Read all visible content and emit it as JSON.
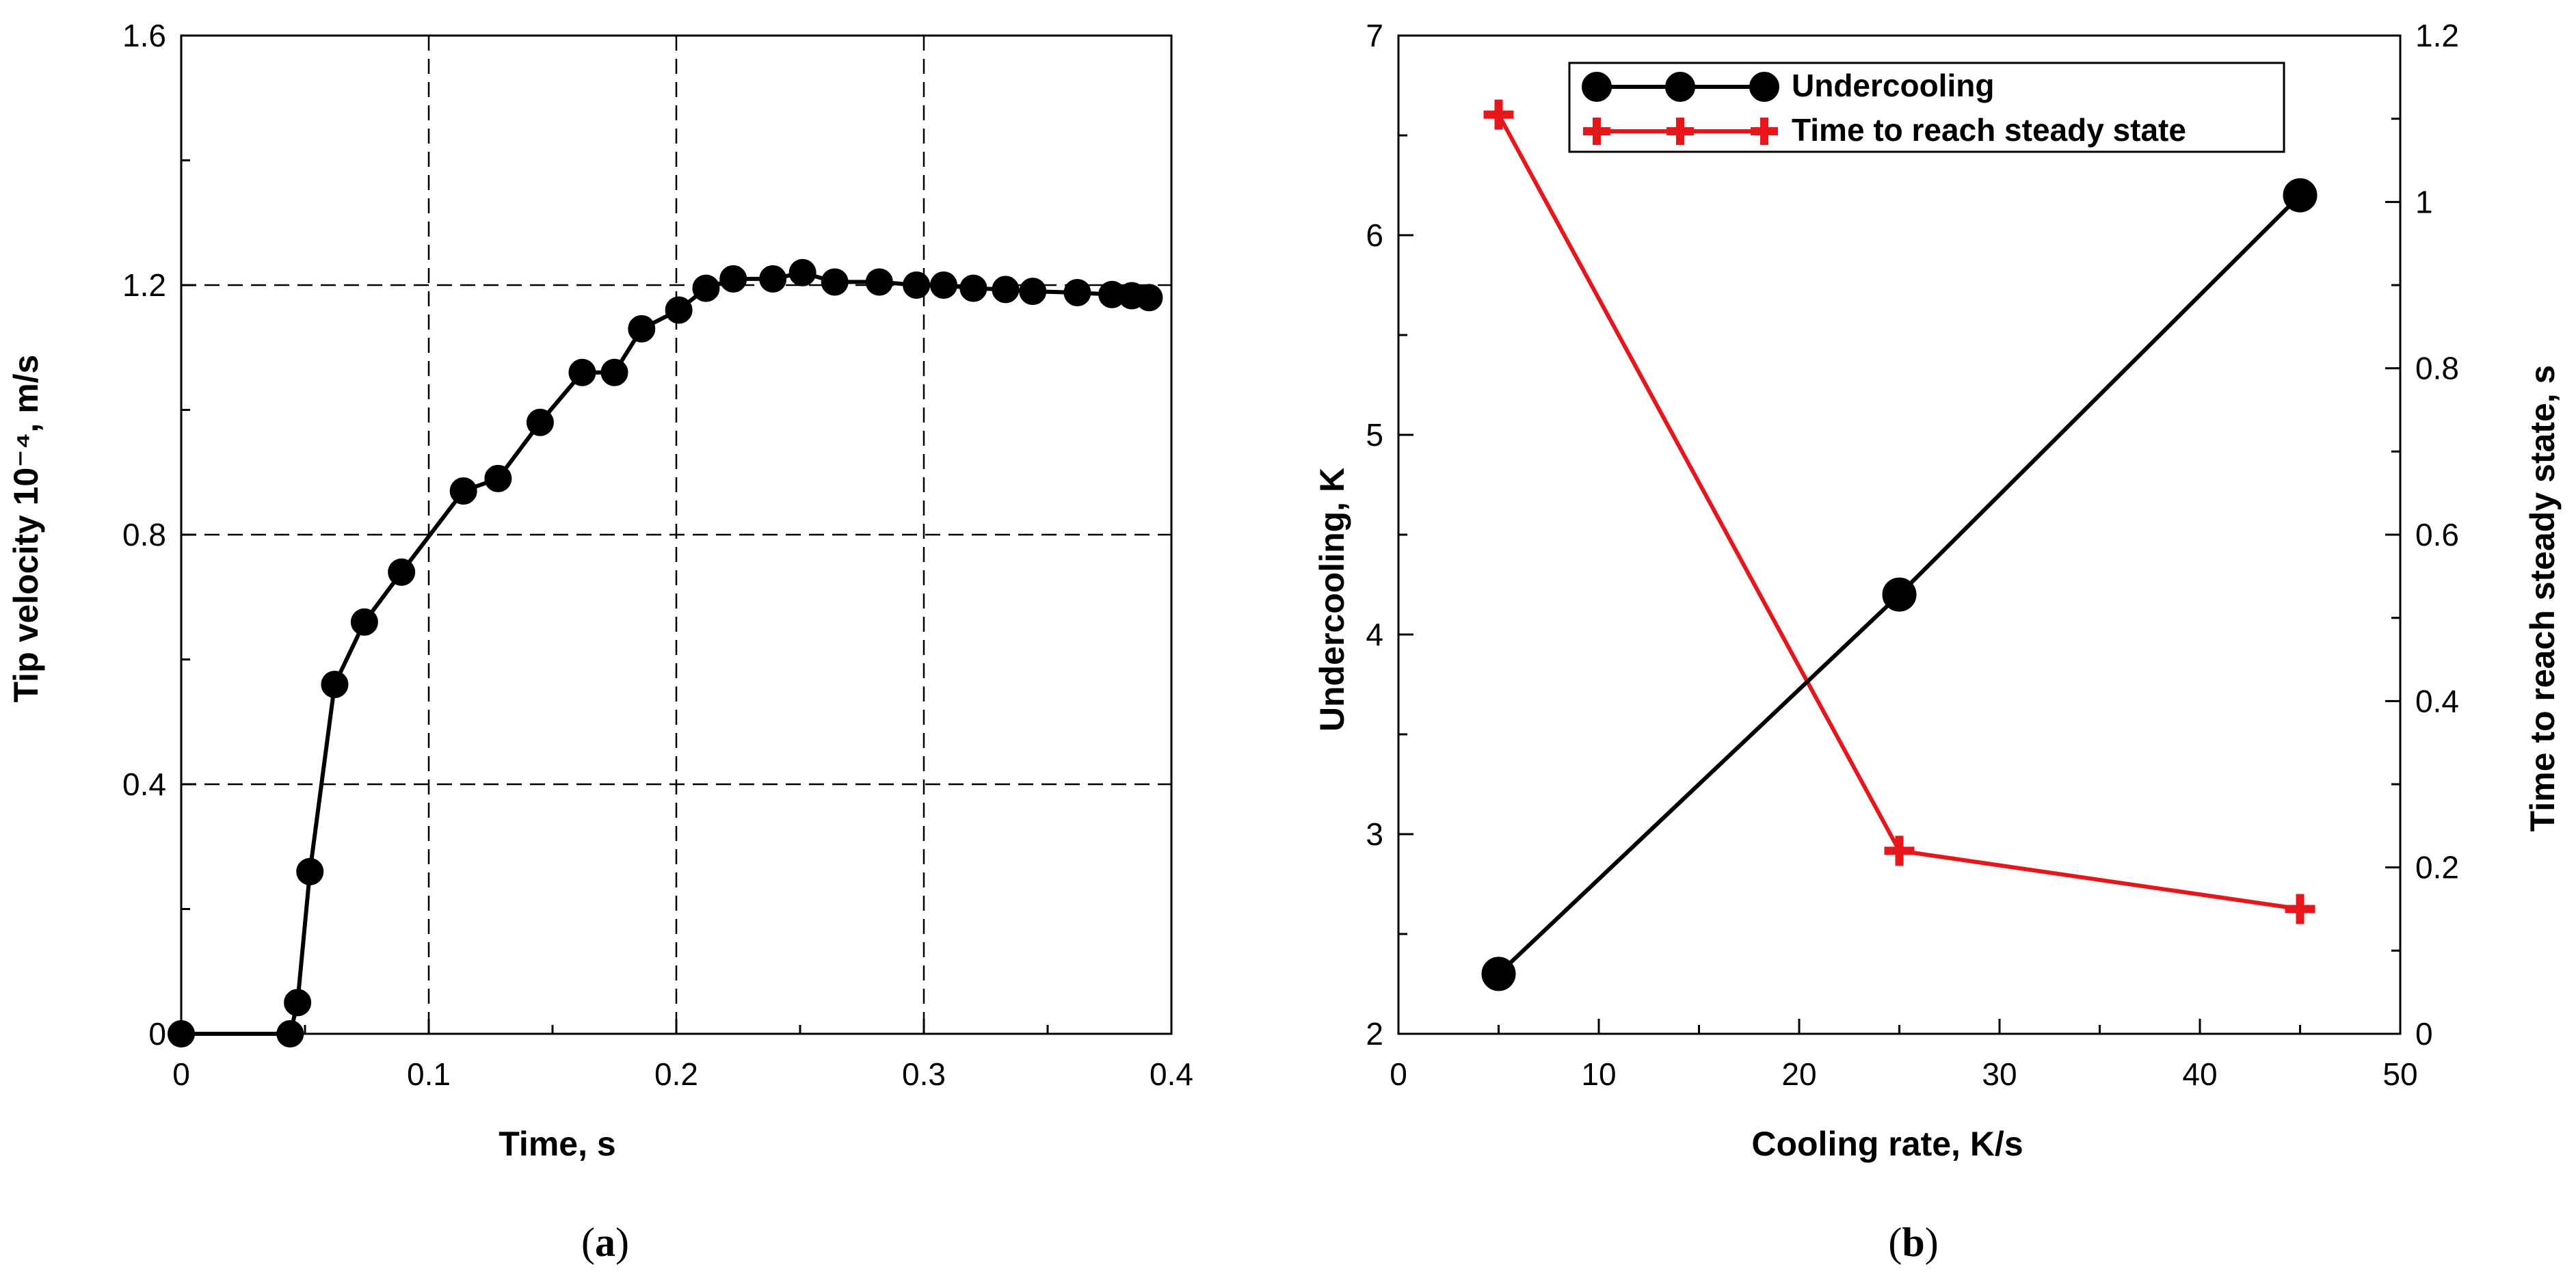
{
  "panels": [
    {
      "label_open": "(",
      "label_letter": "a",
      "label_close": ")"
    },
    {
      "label_open": "(",
      "label_letter": "b",
      "label_close": ")"
    }
  ],
  "colors": {
    "black_series": "#000000",
    "red_series": "#e8161b",
    "grid": "#000000"
  },
  "chart_data": [
    {
      "type": "line",
      "xlabel": "Time, s",
      "ylabel": "Tip velocity 10⁻⁴, m/s",
      "xlim": [
        0,
        0.4
      ],
      "ylim": [
        0,
        1.6
      ],
      "xticks": [
        "0",
        "0.1",
        "0.2",
        "0.3",
        "0.4"
      ],
      "yticks": [
        "0",
        "0.4",
        "0.8",
        "1.2",
        "1.6"
      ],
      "grid": "dashed",
      "series": [
        {
          "marker": "circle",
          "color": "#000000",
          "x": [
            0,
            0.044,
            0.047,
            0.052,
            0.062,
            0.074,
            0.089,
            0.114,
            0.128,
            0.145,
            0.162,
            0.175,
            0.186,
            0.201,
            0.212,
            0.223,
            0.239,
            0.251,
            0.264,
            0.282,
            0.297,
            0.308,
            0.32,
            0.333,
            0.344,
            0.362,
            0.376,
            0.384,
            0.391
          ],
          "y": [
            0,
            0,
            0.05,
            0.26,
            0.56,
            0.66,
            0.74,
            0.87,
            0.89,
            0.98,
            1.06,
            1.06,
            1.13,
            1.16,
            1.195,
            1.21,
            1.21,
            1.22,
            1.205,
            1.205,
            1.2,
            1.2,
            1.195,
            1.193,
            1.19,
            1.188,
            1.185,
            1.183,
            1.18
          ]
        }
      ]
    },
    {
      "type": "line",
      "xlabel": "Cooling rate, K/s",
      "ylabel": "Undercooling, K",
      "y2label": "Time to reach steady state, s",
      "xlim": [
        0,
        50
      ],
      "ylim": [
        2,
        7
      ],
      "y2lim": [
        0,
        1.2
      ],
      "xticks": [
        "0",
        "10",
        "20",
        "30",
        "40",
        "50"
      ],
      "yticks": [
        "2",
        "3",
        "4",
        "5",
        "6",
        "7"
      ],
      "y2ticks": [
        "0",
        "0.2",
        "0.4",
        "0.6",
        "0.8",
        "1",
        "1.2"
      ],
      "legend": "top-center",
      "series": [
        {
          "name": "Undercooling",
          "axis": "left",
          "marker": "circle",
          "color": "#000000",
          "x": [
            5,
            25,
            45
          ],
          "y": [
            2.3,
            4.2,
            6.2
          ]
        },
        {
          "name": "Time to reach steady state",
          "axis": "right",
          "marker": "plus",
          "color": "#e8161b",
          "x": [
            5,
            25,
            45
          ],
          "y": [
            1.105,
            0.22,
            0.15
          ]
        }
      ]
    }
  ]
}
